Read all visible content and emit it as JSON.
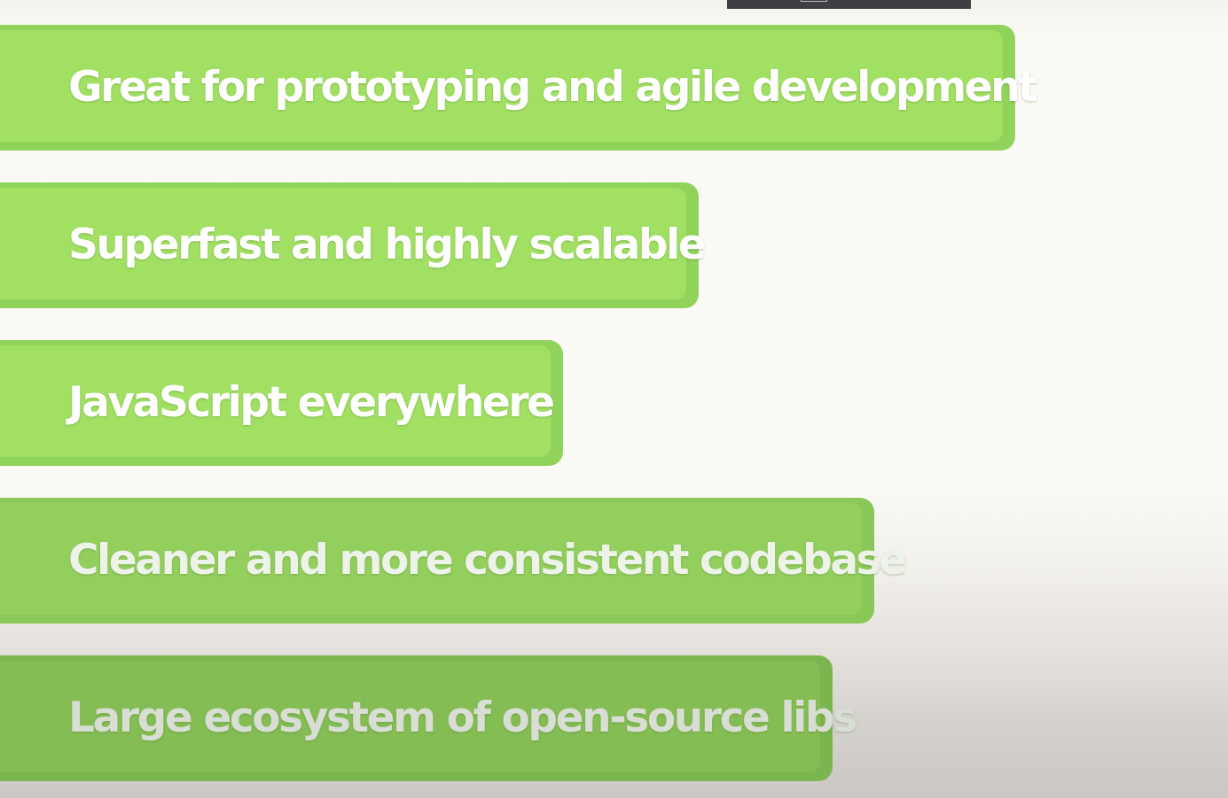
{
  "features": [
    {
      "label": "Great for prototyping and agile development"
    },
    {
      "label": "Superfast and highly scalable"
    },
    {
      "label": "JavaScript everywhere"
    },
    {
      "label": "Cleaner and more consistent codebase"
    },
    {
      "label": "Large ecosystem of open-source libs"
    }
  ],
  "colors": {
    "pill": "#a2e063",
    "pill_border": "#8fd35a",
    "label": "#ffffff",
    "background": "#fcfaf6",
    "top_strip": "#3f3f43"
  }
}
